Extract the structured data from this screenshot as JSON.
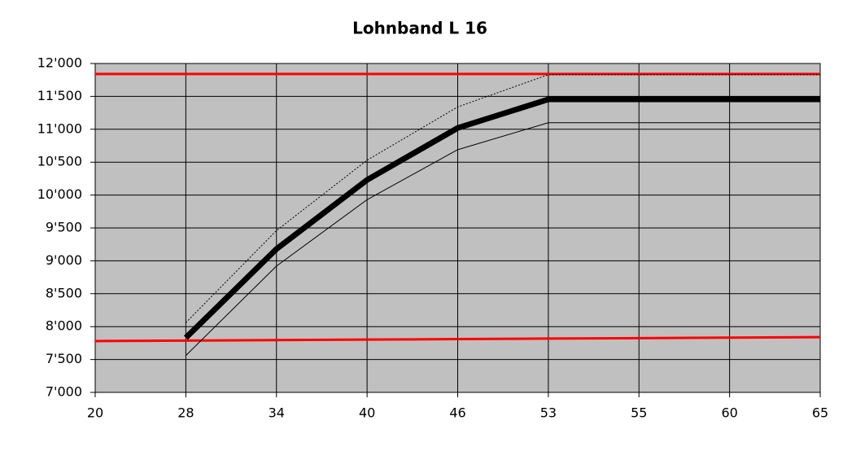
{
  "chart_data": {
    "type": "line",
    "title": "Lohnband L 16",
    "categories": [
      "20",
      "28",
      "34",
      "40",
      "46",
      "53",
      "55",
      "60",
      "65"
    ],
    "ylim": [
      7000,
      12000
    ],
    "yticks": [
      {
        "value": 7000,
        "label": "7'000"
      },
      {
        "value": 7500,
        "label": "7'500"
      },
      {
        "value": 8000,
        "label": "8'000"
      },
      {
        "value": 8500,
        "label": "8'500"
      },
      {
        "value": 9000,
        "label": "9'000"
      },
      {
        "value": 9500,
        "label": "9'500"
      },
      {
        "value": 10000,
        "label": "10'000"
      },
      {
        "value": 10500,
        "label": "10'500"
      },
      {
        "value": 11000,
        "label": "11'000"
      },
      {
        "value": 11500,
        "label": "11'500"
      },
      {
        "value": 12000,
        "label": "12'000"
      }
    ],
    "grid": true,
    "background": "#c0c0c0",
    "series": [
      {
        "color": "#ff0000",
        "line_width": 3,
        "dashed": false,
        "values": [
          11840,
          11840,
          11840,
          11840,
          11840,
          11840,
          11840,
          11840,
          11840
        ]
      },
      {
        "color": "#ff0000",
        "line_width": 3,
        "dashed": false,
        "values": [
          7780,
          7788,
          7795,
          7803,
          7810,
          7818,
          7825,
          7833,
          7840
        ]
      },
      {
        "color": "#000000",
        "line_width": 1,
        "dashed": true,
        "values": [
          null,
          8060,
          9460,
          10530,
          11340,
          11830,
          11830,
          11830,
          11830
        ]
      },
      {
        "color": "#000000",
        "line_width": 1,
        "dashed": false,
        "values": [
          null,
          7560,
          8920,
          9930,
          10690,
          11100,
          11100,
          11100,
          11100
        ]
      },
      {
        "color": "#000000",
        "line_width": 7,
        "dashed": false,
        "values": [
          null,
          7830,
          9180,
          10230,
          11020,
          11455,
          11455,
          11455,
          11455
        ]
      }
    ]
  }
}
